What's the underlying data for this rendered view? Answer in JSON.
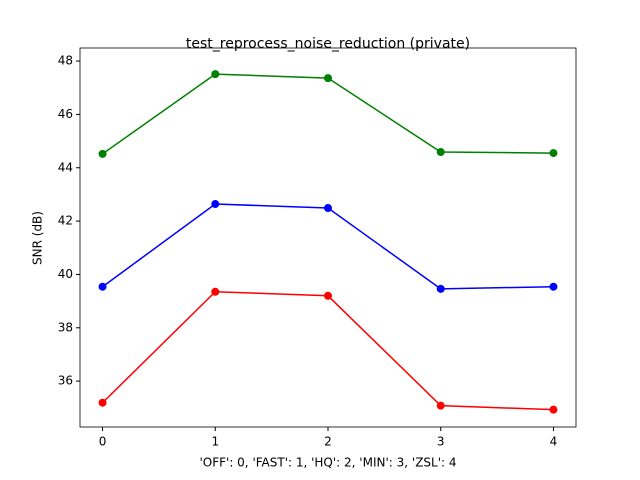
{
  "chart_data": {
    "type": "line",
    "title": "test_reprocess_noise_reduction (private)",
    "xlabel": "'OFF': 0, 'FAST': 1, 'HQ': 2, 'MIN': 3, 'ZSL': 4",
    "ylabel": "SNR (dB)",
    "x": [
      0,
      1,
      2,
      3,
      4
    ],
    "series": [
      {
        "color": "#008000",
        "values": [
          44.52,
          47.51,
          47.36,
          44.59,
          44.55
        ]
      },
      {
        "color": "#0000ff",
        "values": [
          39.54,
          42.64,
          42.49,
          39.46,
          39.54
        ]
      },
      {
        "color": "#ff0000",
        "values": [
          35.19,
          39.35,
          39.2,
          35.08,
          34.93
        ]
      }
    ],
    "xlim": [
      -0.2,
      4.2
    ],
    "ylim": [
      34.28,
      48.49
    ],
    "xticks": [
      0,
      1,
      2,
      3,
      4
    ],
    "yticks": [
      36,
      38,
      40,
      42,
      44,
      46,
      48
    ],
    "grid": false
  }
}
